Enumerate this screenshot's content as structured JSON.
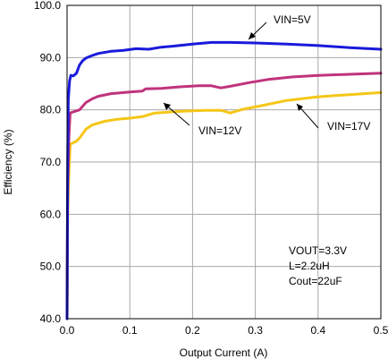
{
  "chart_data": {
    "type": "line",
    "xlabel": "Output Current (A)",
    "ylabel": "Efficiency (%)",
    "xlim": [
      0,
      0.5
    ],
    "ylim": [
      40,
      100
    ],
    "x_ticks": [
      "0.0",
      "0.1",
      "0.2",
      "0.3",
      "0.4",
      "0.5"
    ],
    "y_ticks": [
      "40.0",
      "50.0",
      "60.0",
      "70.0",
      "80.0",
      "90.0",
      "100.0"
    ],
    "grid": true,
    "series": [
      {
        "name": "VIN=5V",
        "color": "#1a1adb",
        "points": [
          [
            0.0,
            40.0
          ],
          [
            0.001,
            70.0
          ],
          [
            0.002,
            82.0
          ],
          [
            0.004,
            85.5
          ],
          [
            0.006,
            86.6
          ],
          [
            0.01,
            86.5
          ],
          [
            0.015,
            87.0
          ],
          [
            0.02,
            88.6
          ],
          [
            0.025,
            89.4
          ],
          [
            0.03,
            89.9
          ],
          [
            0.04,
            90.4
          ],
          [
            0.05,
            90.8
          ],
          [
            0.07,
            91.2
          ],
          [
            0.09,
            91.4
          ],
          [
            0.11,
            91.7
          ],
          [
            0.13,
            91.6
          ],
          [
            0.15,
            92.0
          ],
          [
            0.17,
            92.2
          ],
          [
            0.2,
            92.6
          ],
          [
            0.23,
            92.9
          ],
          [
            0.26,
            92.9
          ],
          [
            0.3,
            92.8
          ],
          [
            0.35,
            92.6
          ],
          [
            0.4,
            92.3
          ],
          [
            0.45,
            91.9
          ],
          [
            0.5,
            91.6
          ]
        ]
      },
      {
        "name": "VIN=12V",
        "color": "#c0337d",
        "points": [
          [
            0.0,
            40.0
          ],
          [
            0.001,
            65.0
          ],
          [
            0.003,
            75.0
          ],
          [
            0.005,
            79.4
          ],
          [
            0.01,
            79.6
          ],
          [
            0.015,
            79.8
          ],
          [
            0.02,
            80.0
          ],
          [
            0.03,
            81.4
          ],
          [
            0.04,
            82.1
          ],
          [
            0.05,
            82.6
          ],
          [
            0.07,
            83.1
          ],
          [
            0.1,
            83.4
          ],
          [
            0.12,
            83.6
          ],
          [
            0.125,
            84.0
          ],
          [
            0.15,
            84.1
          ],
          [
            0.18,
            84.4
          ],
          [
            0.21,
            84.6
          ],
          [
            0.23,
            84.6
          ],
          [
            0.245,
            84.2
          ],
          [
            0.26,
            84.5
          ],
          [
            0.29,
            85.2
          ],
          [
            0.32,
            85.8
          ],
          [
            0.36,
            86.3
          ],
          [
            0.4,
            86.6
          ],
          [
            0.45,
            86.8
          ],
          [
            0.5,
            87.0
          ]
        ]
      },
      {
        "name": "VIN=17V",
        "color": "#f5c617",
        "points": [
          [
            0.0,
            40.0
          ],
          [
            0.001,
            60.0
          ],
          [
            0.003,
            68.0
          ],
          [
            0.005,
            73.4
          ],
          [
            0.01,
            73.7
          ],
          [
            0.015,
            74.0
          ],
          [
            0.02,
            74.6
          ],
          [
            0.03,
            76.3
          ],
          [
            0.04,
            77.1
          ],
          [
            0.06,
            77.8
          ],
          [
            0.08,
            78.2
          ],
          [
            0.1,
            78.4
          ],
          [
            0.12,
            78.7
          ],
          [
            0.14,
            79.4
          ],
          [
            0.18,
            79.7
          ],
          [
            0.22,
            79.9
          ],
          [
            0.245,
            79.9
          ],
          [
            0.26,
            79.4
          ],
          [
            0.28,
            80.1
          ],
          [
            0.31,
            80.8
          ],
          [
            0.35,
            81.8
          ],
          [
            0.4,
            82.5
          ],
          [
            0.45,
            82.9
          ],
          [
            0.5,
            83.3
          ]
        ]
      }
    ],
    "annotations": {
      "vin5": "VIN=5V",
      "vin12": "VIN=12V",
      "vin17": "VIN=17V",
      "conditions": [
        "VOUT=3.3V",
        "L=2.2uH",
        "Cout=22uF"
      ]
    }
  }
}
